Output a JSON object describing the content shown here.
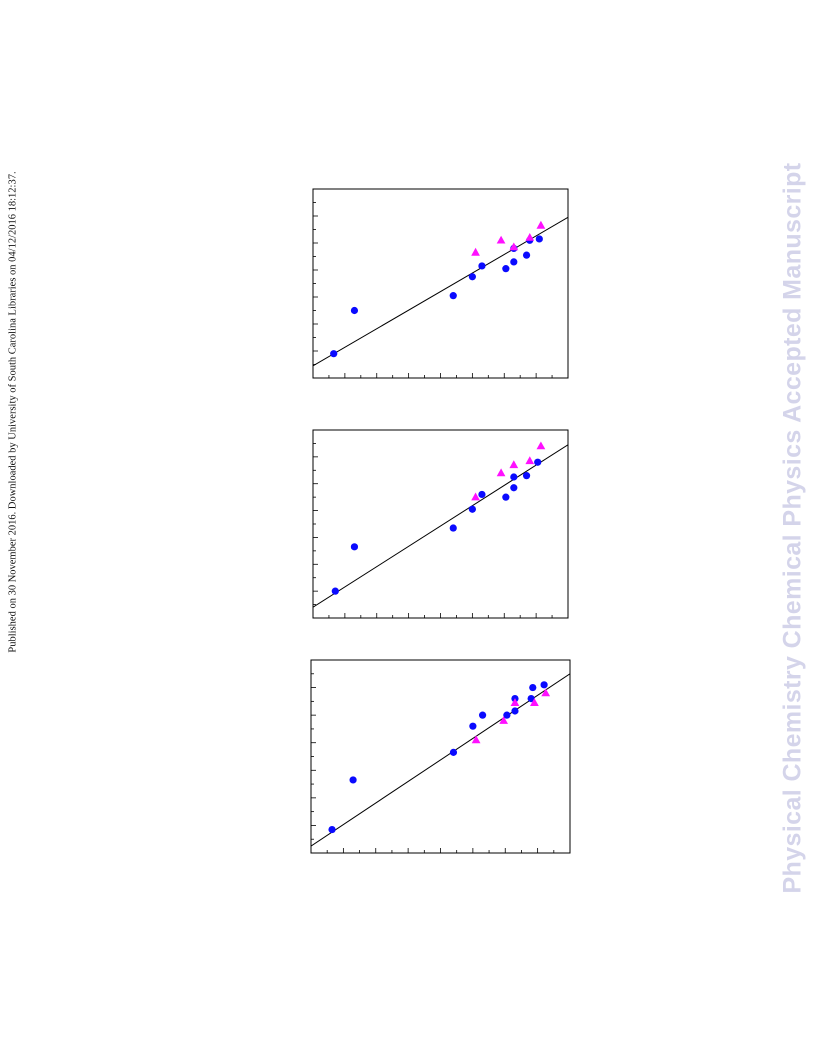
{
  "side_note": "Published on 30 November 2016. Downloaded by University of South Carolina Libraries on 04/12/2016 18:12:37.",
  "watermark": "Physical Chemistry Chemical Physics Accepted Manuscript",
  "colors": {
    "series_circles": "#0a0aff",
    "series_triangles": "#ff10ff",
    "fit_line": "#000000"
  },
  "chart_data": [
    {
      "type": "scatter",
      "xlim": [
        0,
        8
      ],
      "ylim": [
        0,
        7
      ],
      "grid": false,
      "series": [
        {
          "marker": "circle",
          "color": "#0a0aff",
          "points": [
            [
              0.65,
              0.9
            ],
            [
              1.3,
              2.5
            ],
            [
              4.4,
              3.05
            ],
            [
              5.0,
              3.75
            ],
            [
              5.3,
              4.15
            ],
            [
              6.05,
              4.05
            ],
            [
              6.3,
              4.3
            ],
            [
              6.3,
              4.8
            ],
            [
              6.7,
              4.55
            ],
            [
              6.8,
              5.1
            ],
            [
              7.1,
              5.15
            ]
          ]
        },
        {
          "marker": "triangle",
          "color": "#ff10ff",
          "points": [
            [
              5.1,
              4.65
            ],
            [
              5.9,
              5.1
            ],
            [
              6.3,
              4.85
            ],
            [
              6.8,
              5.2
            ],
            [
              7.15,
              5.65
            ]
          ]
        }
      ],
      "fit_line": [
        [
          0.0,
          0.45
        ],
        [
          8.0,
          5.95
        ]
      ]
    },
    {
      "type": "scatter",
      "xlim": [
        0,
        8
      ],
      "ylim": [
        0,
        7
      ],
      "grid": false,
      "series": [
        {
          "marker": "circle",
          "color": "#0a0aff",
          "points": [
            [
              0.7,
              1.0
            ],
            [
              1.3,
              2.65
            ],
            [
              4.4,
              3.35
            ],
            [
              5.0,
              4.05
            ],
            [
              5.3,
              4.6
            ],
            [
              6.05,
              4.5
            ],
            [
              6.3,
              4.85
            ],
            [
              6.3,
              5.25
            ],
            [
              6.7,
              5.3
            ],
            [
              7.05,
              5.8
            ]
          ]
        },
        {
          "marker": "triangle",
          "color": "#ff10ff",
          "points": [
            [
              5.1,
              4.5
            ],
            [
              5.9,
              5.4
            ],
            [
              6.3,
              5.7
            ],
            [
              6.8,
              5.85
            ],
            [
              7.15,
              6.4
            ]
          ]
        }
      ],
      "fit_line": [
        [
          0.0,
          0.4
        ],
        [
          8.0,
          6.45
        ]
      ]
    },
    {
      "type": "scatter",
      "xlim": [
        0,
        8
      ],
      "ylim": [
        0,
        7
      ],
      "grid": false,
      "series": [
        {
          "marker": "circle",
          "color": "#0a0aff",
          "points": [
            [
              0.65,
              0.85
            ],
            [
              1.3,
              2.65
            ],
            [
              4.4,
              3.65
            ],
            [
              5.0,
              4.6
            ],
            [
              5.3,
              5.0
            ],
            [
              6.05,
              5.0
            ],
            [
              6.3,
              5.15
            ],
            [
              6.3,
              5.6
            ],
            [
              6.8,
              5.6
            ],
            [
              6.85,
              6.0
            ],
            [
              7.2,
              6.1
            ]
          ]
        },
        {
          "marker": "triangle",
          "color": "#ff10ff",
          "points": [
            [
              5.1,
              4.1
            ],
            [
              5.95,
              4.8
            ],
            [
              6.3,
              5.45
            ],
            [
              6.9,
              5.45
            ],
            [
              7.25,
              5.8
            ]
          ]
        }
      ],
      "fit_line": [
        [
          0.0,
          0.25
        ],
        [
          8.0,
          6.5
        ]
      ]
    }
  ]
}
